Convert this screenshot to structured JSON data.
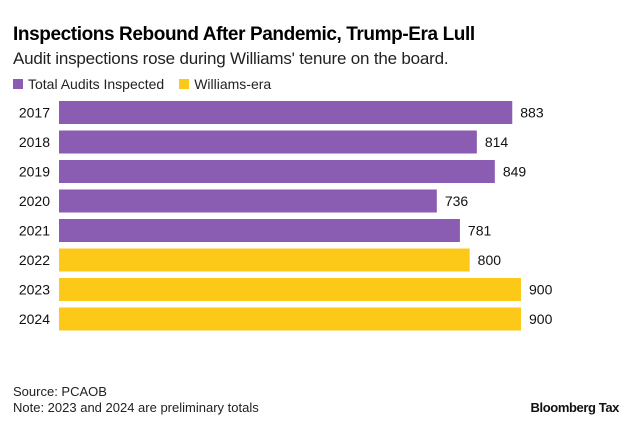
{
  "chart_data": {
    "type": "bar",
    "orientation": "horizontal",
    "title": "Inspections Rebound After Pandemic, Trump-Era Lull",
    "subtitle": "Audit inspections rose during Williams' tenure on the board.",
    "xlabel": "",
    "ylabel": "",
    "xlim": [
      0,
      900
    ],
    "grid": false,
    "legend_position": "top-left",
    "categories": [
      "2017",
      "2018",
      "2019",
      "2020",
      "2021",
      "2022",
      "2023",
      "2024"
    ],
    "values": [
      883,
      814,
      849,
      736,
      781,
      800,
      900,
      900
    ],
    "series_assignment": [
      "Total Audits Inspected",
      "Total Audits Inspected",
      "Total Audits Inspected",
      "Total Audits Inspected",
      "Total Audits Inspected",
      "Williams-era",
      "Williams-era",
      "Williams-era"
    ],
    "data_labels": [
      "883",
      "814",
      "849",
      "736",
      "781",
      "800",
      "900",
      "900"
    ],
    "legend": [
      {
        "name": "Total Audits Inspected",
        "color": "#8a5db3"
      },
      {
        "name": "Williams-era",
        "color": "#fcc919"
      }
    ]
  },
  "footer": {
    "source": "Source: PCAOB",
    "note": "Note: 2023 and 2024 are preliminary totals",
    "brand": "Bloomberg Tax"
  }
}
